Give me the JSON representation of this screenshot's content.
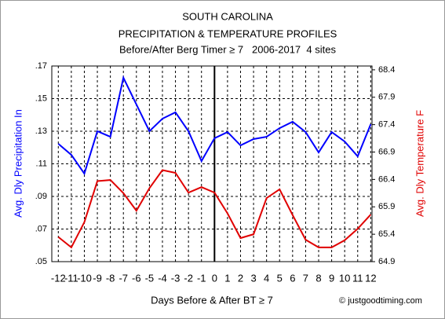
{
  "chart_data": {
    "type": "line",
    "title": [
      "SOUTH CAROLINA",
      "PRECIPITATION & TEMPERATURE PROFILES",
      "Before/After Berg Timer ≥ 7   2006-2017  4 sites"
    ],
    "xlabel": "Days Before & After BT ≥ 7",
    "ylabel": "Avg. Dly Precipitation In",
    "y2label": "Avg. Dly Temperature F",
    "credit": "© justgoodtiming.com",
    "x": [
      -12,
      -11,
      -10,
      -9,
      -8,
      -7,
      -6,
      -5,
      -4,
      -3,
      -2,
      -1,
      0,
      1,
      2,
      3,
      4,
      5,
      6,
      7,
      8,
      9,
      10,
      11,
      12
    ],
    "xlim": [
      -12.5,
      12.1
    ],
    "xticks": [
      -12,
      -11,
      -10,
      -9,
      -8,
      -7,
      -6,
      -5,
      -4,
      -3,
      -2,
      -1,
      0,
      1,
      2,
      3,
      4,
      5,
      6,
      7,
      8,
      9,
      10,
      11,
      12
    ],
    "vline": 0,
    "ylim": [
      0.05,
      0.17
    ],
    "yticks": [
      {
        "value": 0.05,
        "label": ".05"
      },
      {
        "value": 0.07,
        "label": ".07"
      },
      {
        "value": 0.09,
        "label": ".09"
      },
      {
        "value": 0.11,
        "label": ".11"
      },
      {
        "value": 0.13,
        "label": ".13"
      },
      {
        "value": 0.15,
        "label": ".15"
      },
      {
        "value": 0.17,
        "label": ".17"
      }
    ],
    "y2lim": [
      64.9,
      68.47
    ],
    "y2ticks": [
      64.9,
      65.4,
      65.9,
      66.4,
      66.9,
      67.4,
      67.9,
      68.4
    ],
    "grid": true,
    "series": [
      {
        "name": "Avg. Dly Precipitation In",
        "color": "#0000ff",
        "axis": "y",
        "values": [
          0.1223,
          0.1155,
          0.104,
          0.13,
          0.1266,
          0.1628,
          0.1464,
          0.13,
          0.1377,
          0.1416,
          0.13,
          0.1117,
          0.1257,
          0.1295,
          0.1213,
          0.1252,
          0.1266,
          0.1319,
          0.1358,
          0.1295,
          0.117,
          0.1295,
          0.1237,
          0.1146,
          0.1343
        ]
      },
      {
        "name": "Avg. Dly Temperature F",
        "color": "#e00000",
        "axis": "y2",
        "values": [
          65.35,
          65.16,
          65.62,
          66.37,
          66.39,
          66.15,
          65.83,
          66.24,
          66.57,
          66.52,
          66.16,
          66.26,
          66.16,
          65.78,
          65.33,
          65.4,
          66.06,
          66.22,
          65.75,
          65.3,
          65.16,
          65.16,
          65.29,
          65.5,
          65.76
        ]
      }
    ]
  }
}
